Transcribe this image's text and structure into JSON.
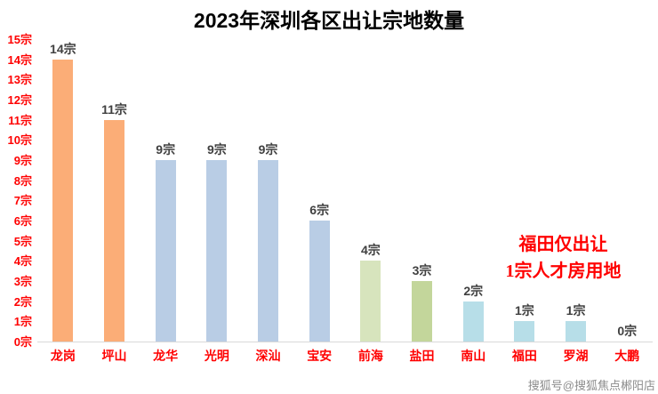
{
  "chart_data": {
    "type": "bar",
    "title": "2023年深圳各区出让宗地数量",
    "categories": [
      "龙岗",
      "坪山",
      "龙华",
      "光明",
      "深汕",
      "宝安",
      "前海",
      "盐田",
      "南山",
      "福田",
      "罗湖",
      "大鹏"
    ],
    "values": [
      14,
      11,
      9,
      9,
      9,
      6,
      4,
      3,
      2,
      1,
      1,
      0
    ],
    "value_labels": [
      "14宗",
      "11宗",
      "9宗",
      "9宗",
      "9宗",
      "6宗",
      "4宗",
      "3宗",
      "2宗",
      "1宗",
      "1宗",
      "0宗"
    ],
    "bar_colors": [
      "#FBAD77",
      "#FBAD77",
      "#B9CDE5",
      "#B9CDE5",
      "#B9CDE5",
      "#B9CDE5",
      "#D7E4BD",
      "#C3D69B",
      "#B7DEE8",
      "#B7DEE8",
      "#B7DEE8",
      "#B7DEE8"
    ],
    "ylim": [
      0,
      15
    ],
    "ytick_labels": [
      "0宗",
      "1宗",
      "2宗",
      "3宗",
      "4宗",
      "5宗",
      "6宗",
      "7宗",
      "8宗",
      "9宗",
      "10宗",
      "11宗",
      "12宗",
      "13宗",
      "14宗",
      "15宗"
    ],
    "axis_label_color": "#FF0000",
    "value_label_color": "#404040",
    "grid": false,
    "legend": false,
    "xlabel": "",
    "ylabel": ""
  },
  "annotation": {
    "line1": "福田仅出让",
    "line2": "1宗人才房用地",
    "color": "#FF0000"
  },
  "watermark": {
    "text": "搜狐号@搜狐焦点郴阳店"
  }
}
